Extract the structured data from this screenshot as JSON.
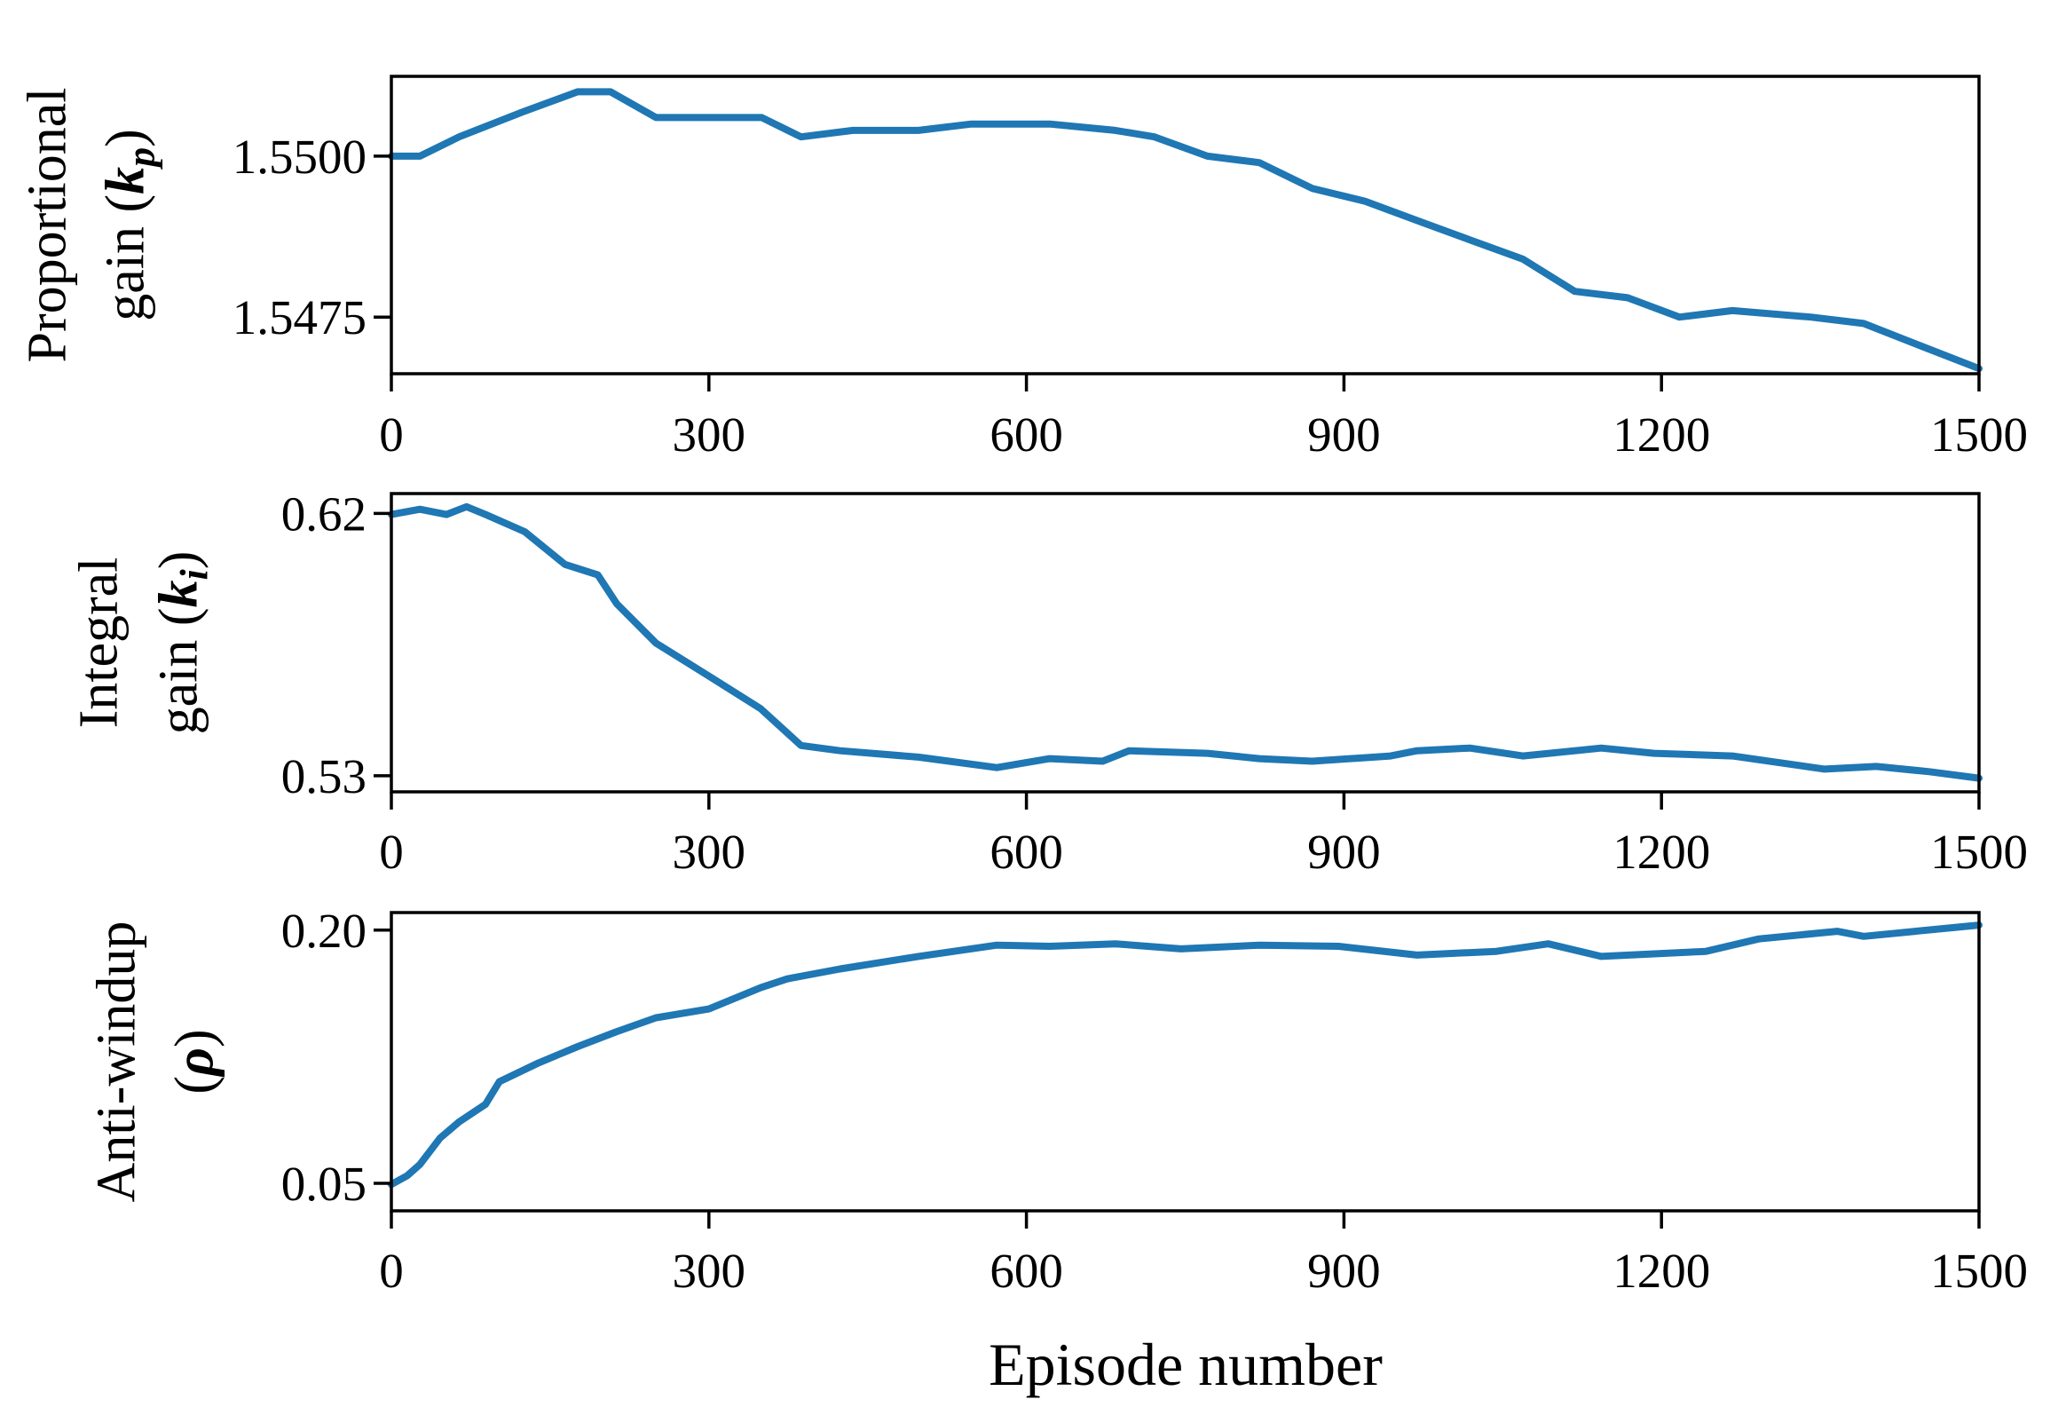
{
  "figure": {
    "xlabel": "Episode number",
    "line_color": "#1f77b4",
    "axis_color": "#000000",
    "background": "#ffffff"
  },
  "chart_data": [
    {
      "type": "line",
      "title": "",
      "ylabel_lines": [
        "Proportional",
        "gain (k",
        "p",
        ")"
      ],
      "ylabel": "Proportional gain (k_p)",
      "xlabel": "",
      "xlim": [
        0,
        1500
      ],
      "ylim": [
        1.54662,
        1.55124
      ],
      "xticks": [
        0,
        300,
        600,
        900,
        1200,
        1500
      ],
      "xtick_labels": [
        "0",
        "300",
        "600",
        "900",
        "1200",
        "1500"
      ],
      "yticks": [
        1.5475,
        1.55
      ],
      "ytick_labels": [
        "1.5475",
        "1.5500"
      ],
      "grid": false,
      "series": [
        {
          "name": "k_p",
          "x": [
            0,
            27,
            64,
            126,
            176,
            207,
            250,
            300,
            350,
            387,
            436,
            498,
            548,
            597,
            622,
            684,
            721,
            771,
            820,
            870,
            920,
            969,
            1019,
            1069,
            1118,
            1168,
            1217,
            1267,
            1341,
            1391,
            1453,
            1500
          ],
          "y": [
            1.55,
            1.55,
            1.5503,
            1.5507,
            1.551,
            1.551,
            1.5506,
            1.5506,
            1.5506,
            1.5503,
            1.5504,
            1.5504,
            1.5505,
            1.5505,
            1.5505,
            1.5504,
            1.5503,
            1.55,
            1.5499,
            1.5495,
            1.5493,
            1.549,
            1.5487,
            1.5484,
            1.5479,
            1.5478,
            1.5475,
            1.5476,
            1.5475,
            1.5474,
            1.547,
            1.5467
          ]
        }
      ]
    },
    {
      "type": "line",
      "title": "",
      "ylabel": "Integral gain (k_i)",
      "ylabel_lines": [
        "Integral",
        "gain (k",
        "i",
        ")"
      ],
      "xlabel": "",
      "xlim": [
        0,
        1500
      ],
      "ylim": [
        0.5245,
        0.6268
      ],
      "xticks": [
        0,
        300,
        600,
        900,
        1200,
        1500
      ],
      "xtick_labels": [
        "0",
        "300",
        "600",
        "900",
        "1200",
        "1500"
      ],
      "yticks": [
        0.53,
        0.62
      ],
      "ytick_labels": [
        "0.53",
        "0.62"
      ],
      "grid": false,
      "series": [
        {
          "name": "k_i",
          "x": [
            0,
            27,
            52,
            71,
            89,
            126,
            164,
            195,
            213,
            250,
            300,
            349,
            387,
            424,
            498,
            572,
            622,
            672,
            697,
            771,
            820,
            870,
            944,
            969,
            1019,
            1069,
            1143,
            1193,
            1267,
            1354,
            1403,
            1453,
            1500
          ],
          "y": [
            0.6196,
            0.6214,
            0.6196,
            0.6223,
            0.6196,
            0.6137,
            0.6025,
            0.5989,
            0.589,
            0.5755,
            0.5642,
            0.553,
            0.5404,
            0.5386,
            0.5364,
            0.5328,
            0.5359,
            0.535,
            0.5386,
            0.5377,
            0.5359,
            0.535,
            0.5368,
            0.5386,
            0.5395,
            0.5368,
            0.5395,
            0.5377,
            0.5368,
            0.5323,
            0.5332,
            0.5314,
            0.5292
          ]
        }
      ]
    },
    {
      "type": "line",
      "title": "",
      "ylabel": "Anti-windup (ρ)",
      "ylabel_lines": [
        "Anti-windup",
        "(ρ)"
      ],
      "xlabel": "Episode number",
      "xlim": [
        0,
        1500
      ],
      "ylim": [
        0.0337,
        0.2104
      ],
      "xticks": [
        0,
        300,
        600,
        900,
        1200,
        1500
      ],
      "xtick_labels": [
        "0",
        "300",
        "600",
        "900",
        "1200",
        "1500"
      ],
      "yticks": [
        0.05,
        0.2
      ],
      "ytick_labels": [
        "0.05",
        "0.20"
      ],
      "grid": false,
      "series": [
        {
          "name": "rho",
          "x": [
            0,
            15,
            27,
            46,
            64,
            89,
            102,
            139,
            176,
            213,
            250,
            300,
            349,
            374,
            424,
            498,
            572,
            622,
            684,
            746,
            820,
            895,
            969,
            1044,
            1093,
            1143,
            1242,
            1292,
            1366,
            1391,
            1440,
            1500
          ],
          "y": [
            0.0493,
            0.0545,
            0.0612,
            0.0768,
            0.0864,
            0.0968,
            0.1102,
            0.1213,
            0.131,
            0.1399,
            0.1481,
            0.1533,
            0.1659,
            0.1711,
            0.177,
            0.1844,
            0.1911,
            0.1904,
            0.1919,
            0.1889,
            0.1911,
            0.1904,
            0.1852,
            0.1874,
            0.1919,
            0.1844,
            0.1874,
            0.1948,
            0.1993,
            0.1963,
            0.1993,
            0.203
          ]
        }
      ]
    }
  ]
}
